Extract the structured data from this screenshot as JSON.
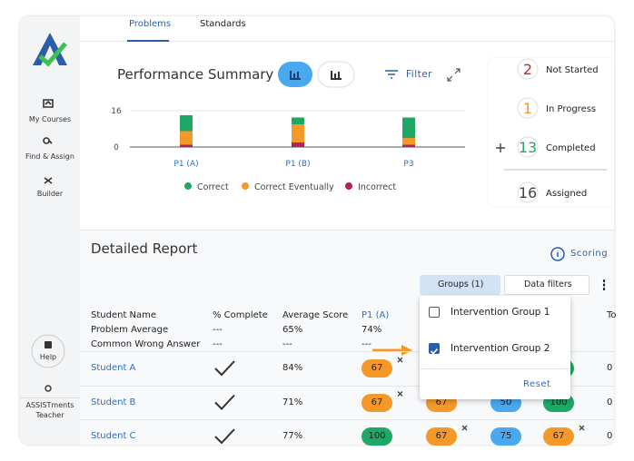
{
  "sidebar": {
    "nav": [
      {
        "label": "My Courses"
      },
      {
        "label": "Find & Assign"
      },
      {
        "label": "Builder"
      }
    ],
    "help": "Help",
    "user": "ASSISTments Teacher"
  },
  "tabs": [
    "Problems",
    "Standards"
  ],
  "summary": {
    "title": "Performance Summary",
    "filter": "Filter"
  },
  "chart_data": {
    "type": "stacked_bar",
    "categories": [
      "P1 (A)",
      "P1 (B)",
      "P3"
    ],
    "series": [
      {
        "name": "Correct",
        "color": "#1fa865",
        "values": [
          7,
          3,
          9
        ]
      },
      {
        "name": "Correct Eventually",
        "color": "#f5982a",
        "values": [
          6,
          8,
          3
        ]
      },
      {
        "name": "Incorrect",
        "color": "#b5215f",
        "values": [
          1,
          2,
          1
        ]
      }
    ],
    "ylim": [
      0,
      16
    ],
    "yticks": [
      0,
      16
    ]
  },
  "status": [
    {
      "count": 2,
      "label": "Not Started",
      "color": "#c62828"
    },
    {
      "count": 1,
      "label": "In Progress",
      "color": "#f5982a"
    },
    {
      "count": 13,
      "label": "Completed",
      "color": "#1fa865"
    },
    {
      "count": 16,
      "label": "Assigned",
      "color": "#444444"
    }
  ],
  "report": {
    "title": "Detailed Report",
    "scoring": "Scoring",
    "groups": "Groups (1)",
    "filters": "Data filters",
    "columns": [
      "Student Name",
      "% Complete",
      "Average Score",
      "P1 (A)",
      "To"
    ],
    "summary_rows": [
      {
        "label": "Problem Average",
        "cells": [
          "---",
          "65%",
          "74%"
        ]
      },
      {
        "label": "Common Wrong Answer",
        "cells": [
          "---",
          "---",
          "---"
        ]
      }
    ],
    "rows": [
      {
        "name": "Student A",
        "complete": true,
        "average": "84%",
        "cells": [
          {
            "score": "67",
            "color": "orange",
            "wrong": true
          },
          null,
          null,
          {
            "color": "green"
          }
        ],
        "total": "0"
      },
      {
        "name": "Student B",
        "complete": true,
        "average": "71%",
        "cells": [
          {
            "score": "67",
            "color": "orange",
            "wrong": true
          },
          {
            "score": "67",
            "color": "orange"
          },
          {
            "score": "50",
            "color": "blue"
          },
          {
            "score": "100",
            "color": "green"
          }
        ],
        "total": "0"
      },
      {
        "name": "Student C",
        "complete": true,
        "average": "77%",
        "cells": [
          {
            "score": "100",
            "color": "green"
          },
          {
            "score": "67",
            "color": "orange",
            "wrong": true
          },
          {
            "score": "75",
            "color": "blue"
          },
          {
            "score": "67",
            "color": "orange",
            "wrong": true
          }
        ],
        "total": "0"
      }
    ]
  },
  "dropdown": {
    "options": [
      {
        "label": "Intervention Group 1",
        "checked": false
      },
      {
        "label": "Intervention Group 2",
        "checked": true
      }
    ],
    "reset": "Reset"
  }
}
